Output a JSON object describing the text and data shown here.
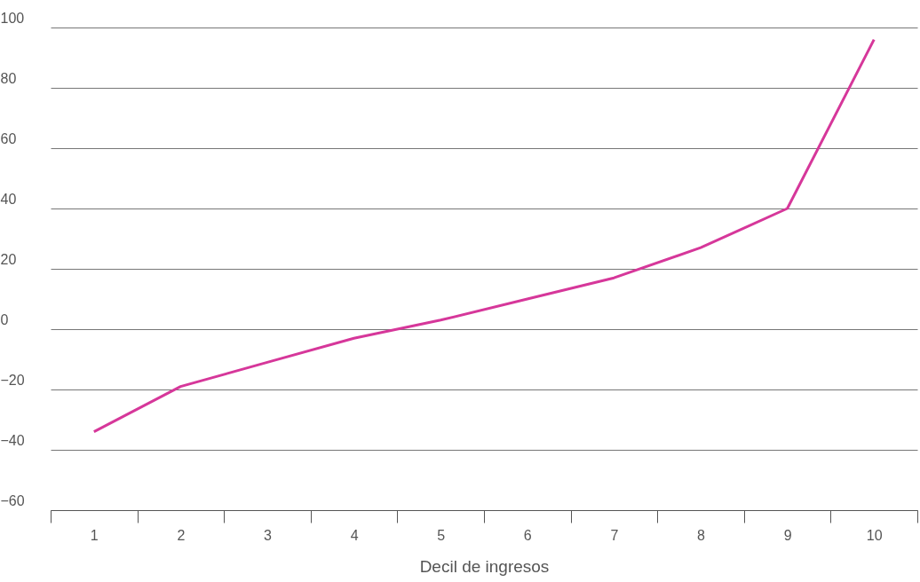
{
  "chart_data": {
    "type": "line",
    "xlabel": "Decil de ingresos",
    "categories": [
      "1",
      "2",
      "3",
      "4",
      "5",
      "6",
      "7",
      "8",
      "9",
      "10"
    ],
    "series": [
      {
        "color": "#d6379a",
        "values": [
          -34,
          -19,
          -11,
          -3,
          3,
          10,
          17,
          27,
          40,
          96
        ]
      }
    ],
    "ylim": [
      -60,
      100
    ],
    "yticks": [
      -60,
      -40,
      -20,
      0,
      20,
      40,
      60,
      80,
      100
    ],
    "grid": "y",
    "legend": false,
    "marker": "none",
    "line_style": "solid"
  }
}
